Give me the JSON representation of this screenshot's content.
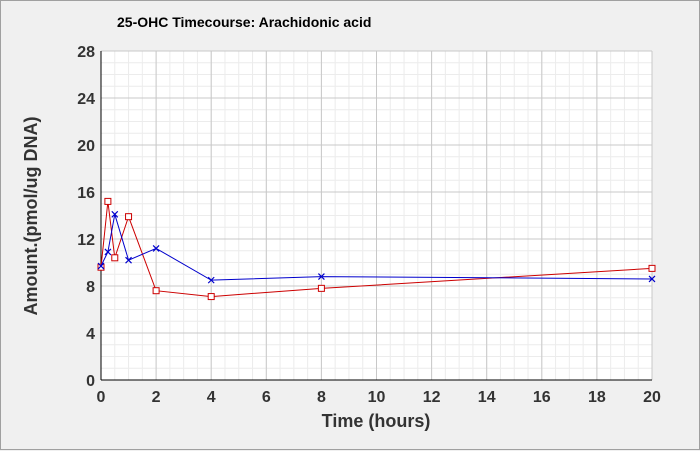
{
  "chart_data": {
    "type": "line",
    "title": "25-OHC Timecourse: Arachidonic acid",
    "xlabel": "Time (hours)",
    "ylabel": "Amount.(pmol/ug DNA)",
    "xlim": [
      0,
      20
    ],
    "ylim": [
      0,
      28
    ],
    "xticks": [
      0,
      2,
      4,
      6,
      8,
      10,
      12,
      14,
      16,
      18,
      20
    ],
    "yticks": [
      0,
      4,
      8,
      12,
      16,
      20,
      24,
      28
    ],
    "grid": true,
    "legend": "none",
    "series": [
      {
        "color": "#cc0000",
        "marker": "square",
        "x": [
          0,
          0.25,
          0.5,
          1,
          2,
          4,
          8,
          20
        ],
        "y": [
          9.6,
          15.2,
          10.4,
          13.9,
          7.6,
          7.1,
          7.8,
          9.5
        ]
      },
      {
        "color": "#0000cc",
        "marker": "x",
        "x": [
          0,
          0.25,
          0.5,
          1,
          2,
          4,
          8,
          20
        ],
        "y": [
          9.7,
          10.9,
          14.1,
          10.2,
          11.2,
          8.5,
          8.8,
          8.6
        ]
      }
    ]
  }
}
